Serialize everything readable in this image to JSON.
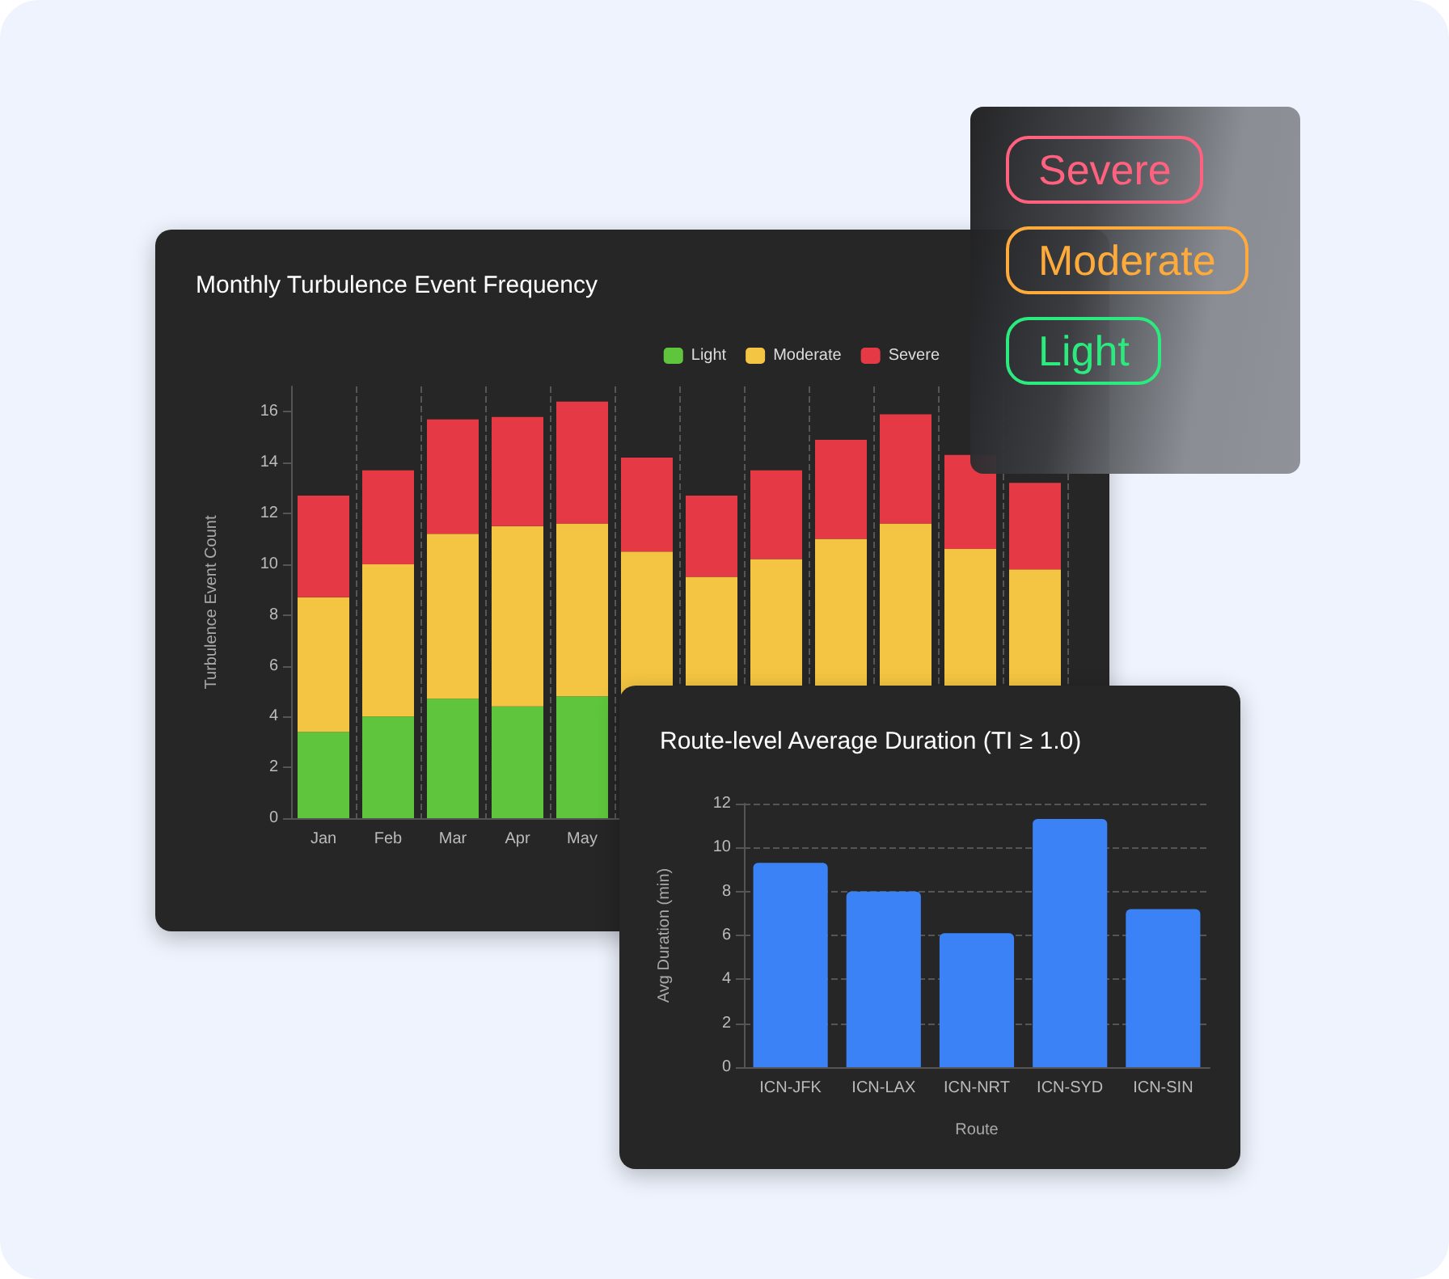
{
  "chart_data": [
    {
      "type": "bar",
      "title": "Monthly Turbulence Event Frequency",
      "ylabel": "Turbulence Event Count",
      "stacked": true,
      "categories": [
        "Jan",
        "Feb",
        "Mar",
        "Apr",
        "May",
        null,
        null,
        null,
        null,
        null,
        null,
        null
      ],
      "series": [
        {
          "name": "Light",
          "color": "#5fc53c",
          "values": [
            3.4,
            4.0,
            4.7,
            4.4,
            4.8,
            null,
            null,
            null,
            null,
            null,
            null,
            null
          ]
        },
        {
          "name": "Moderate",
          "color": "#f4c542",
          "values": [
            5.3,
            6.0,
            6.5,
            7.1,
            6.8,
            10.5,
            9.5,
            10.2,
            11.0,
            11.6,
            10.6,
            9.8
          ]
        },
        {
          "name": "Severe",
          "color": "#e63946",
          "values": [
            4.0,
            3.7,
            4.5,
            4.3,
            4.8,
            3.7,
            3.2,
            3.5,
            3.9,
            4.3,
            3.7,
            3.4
          ]
        }
      ],
      "ylim": [
        0,
        17
      ],
      "yticks": [
        0,
        2,
        4,
        6,
        8,
        10,
        12,
        14,
        16
      ],
      "grid": "x",
      "legend": "top right"
    },
    {
      "type": "bar",
      "title": "Route-level Average Duration (TI ≥ 1.0)",
      "xlabel": "Route",
      "ylabel": "Avg Duration (min)",
      "categories": [
        "ICN-JFK",
        "ICN-LAX",
        "ICN-NRT",
        "ICN-SYD",
        "ICN-SIN"
      ],
      "values": [
        9.3,
        8.0,
        6.1,
        11.3,
        7.2
      ],
      "color": "#3b82f6",
      "ylim": [
        0,
        12
      ],
      "yticks": [
        0,
        2,
        4,
        6,
        8,
        10,
        12
      ],
      "grid": "y"
    },
    {
      "type": "other",
      "annotations": [
        "Severe",
        "Moderate",
        "Light"
      ],
      "colors": [
        "#e0455a",
        "#e07a2a",
        "#1fa85a"
      ]
    }
  ]
}
